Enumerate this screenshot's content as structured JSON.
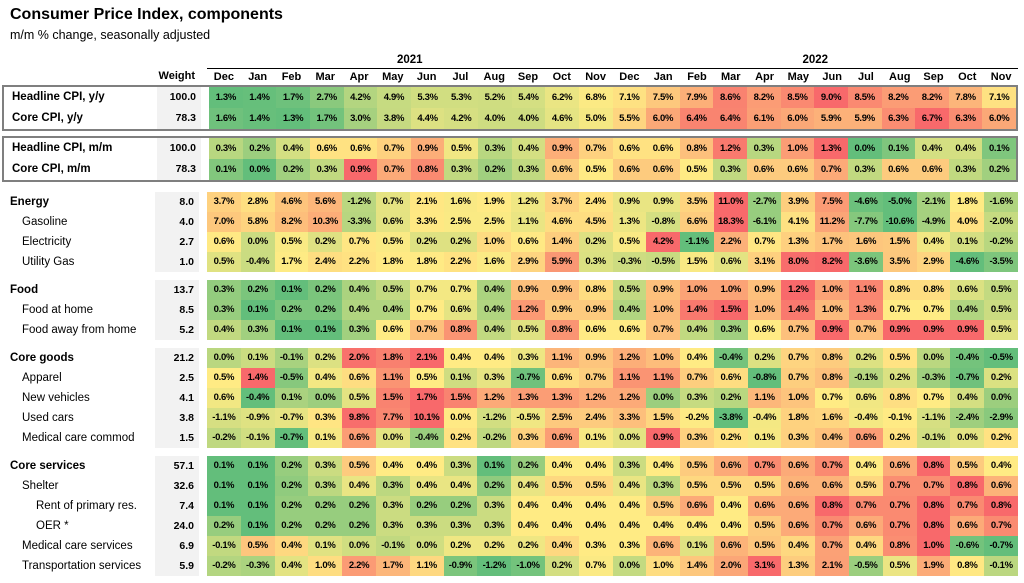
{
  "title": "Consumer Price Index, components",
  "subtitle": "m/m % change, seasonally adjusted",
  "header": {
    "weight_label": "Weight"
  },
  "chart_data": {
    "type": "heatmap",
    "title": "Consumer Price Index, components",
    "subtitle": "m/m % change, seasonally adjusted",
    "legend": "none",
    "color_scale": {
      "min_color": "#63BE7B",
      "mid_color": "#FFEB84",
      "max_color": "#F8696B",
      "midpoint": "per-row median",
      "scope": "per-row"
    },
    "box_border_color": "#7F7F7F",
    "weight_col_bg": "#F2F2F2",
    "year_groups": [
      {
        "label": "2021",
        "span": 12
      },
      {
        "label": "2022",
        "span": 12
      }
    ],
    "columns": [
      "Dec",
      "Jan",
      "Feb",
      "Mar",
      "Apr",
      "May",
      "Jun",
      "Jul",
      "Aug",
      "Sep",
      "Oct",
      "Nov",
      "Dec",
      "Jan",
      "Feb",
      "Mar",
      "Apr",
      "May",
      "Jun",
      "Jul",
      "Aug",
      "Sep",
      "Oct",
      "Nov"
    ],
    "groups": [
      {
        "name": "cpi-yoy",
        "boxed": true,
        "rows": [
          {
            "label": "Headline CPI, y/y",
            "weight": "100.0",
            "bold": true,
            "indent": 0,
            "values": [
              1.3,
              1.4,
              1.7,
              2.7,
              4.2,
              4.9,
              5.3,
              5.3,
              5.2,
              5.4,
              6.2,
              6.8,
              7.1,
              7.5,
              7.9,
              8.6,
              8.2,
              8.5,
              9.0,
              8.5,
              8.2,
              8.2,
              7.8,
              7.1
            ]
          },
          {
            "label": "Core CPI, y/y",
            "weight": "78.3",
            "bold": true,
            "indent": 0,
            "values": [
              1.6,
              1.4,
              1.3,
              1.7,
              3.0,
              3.8,
              4.4,
              4.2,
              4.0,
              4.0,
              4.6,
              5.0,
              5.5,
              6.0,
              6.4,
              6.4,
              6.1,
              6.0,
              5.9,
              5.9,
              6.3,
              6.7,
              6.3,
              6.0
            ]
          }
        ]
      },
      {
        "name": "cpi-mom",
        "boxed": true,
        "rows": [
          {
            "label": "Headline CPI, m/m",
            "weight": "100.0",
            "bold": true,
            "indent": 0,
            "values": [
              0.3,
              0.2,
              0.4,
              0.6,
              0.6,
              0.7,
              0.9,
              0.5,
              0.3,
              0.4,
              0.9,
              0.7,
              0.6,
              0.6,
              0.8,
              1.2,
              0.3,
              1.0,
              1.3,
              0.0,
              0.1,
              0.4,
              0.4,
              0.1
            ]
          },
          {
            "label": "Core CPI, m/m",
            "weight": "78.3",
            "bold": true,
            "indent": 0,
            "values": [
              0.1,
              0.0,
              0.2,
              0.3,
              0.9,
              0.7,
              0.8,
              0.3,
              0.2,
              0.3,
              0.6,
              0.5,
              0.6,
              0.6,
              0.5,
              0.3,
              0.6,
              0.6,
              0.7,
              0.3,
              0.6,
              0.6,
              0.3,
              0.2
            ]
          }
        ]
      },
      {
        "name": "energy",
        "boxed": false,
        "rows": [
          {
            "label": "Energy",
            "weight": "8.0",
            "bold": true,
            "indent": 0,
            "values": [
              3.7,
              2.8,
              4.6,
              5.6,
              -1.2,
              0.7,
              2.1,
              1.6,
              1.9,
              1.2,
              3.7,
              2.4,
              0.9,
              0.9,
              3.5,
              11.0,
              -2.7,
              3.9,
              7.5,
              -4.6,
              -5.0,
              -2.1,
              1.8,
              -1.6
            ]
          },
          {
            "label": "Gasoline",
            "weight": "4.0",
            "bold": false,
            "indent": 1,
            "values": [
              7.0,
              5.8,
              8.2,
              10.3,
              -3.3,
              0.6,
              3.3,
              2.5,
              2.5,
              1.1,
              4.6,
              4.5,
              1.3,
              -0.8,
              6.6,
              18.3,
              -6.1,
              4.1,
              11.2,
              -7.7,
              -10.6,
              -4.9,
              4.0,
              -2.0
            ]
          },
          {
            "label": "Electricity",
            "weight": "2.7",
            "bold": false,
            "indent": 1,
            "values": [
              0.6,
              0.0,
              0.5,
              0.2,
              0.7,
              0.5,
              0.2,
              0.2,
              1.0,
              0.6,
              1.4,
              0.2,
              0.5,
              4.2,
              -1.1,
              2.2,
              0.7,
              1.3,
              1.7,
              1.6,
              1.5,
              0.4,
              0.1,
              -0.2
            ]
          },
          {
            "label": "Utility Gas",
            "weight": "1.0",
            "bold": false,
            "indent": 1,
            "values": [
              0.5,
              -0.4,
              1.7,
              2.4,
              2.2,
              1.8,
              1.8,
              2.2,
              1.6,
              2.9,
              5.9,
              0.3,
              -0.3,
              -0.5,
              1.5,
              0.6,
              3.1,
              8.0,
              8.2,
              -3.6,
              3.5,
              2.9,
              -4.6,
              -3.5
            ]
          }
        ]
      },
      {
        "name": "food",
        "boxed": false,
        "rows": [
          {
            "label": "Food",
            "weight": "13.7",
            "bold": true,
            "indent": 0,
            "values": [
              0.3,
              0.2,
              0.1,
              0.2,
              0.4,
              0.5,
              0.7,
              0.7,
              0.4,
              0.9,
              0.9,
              0.8,
              0.5,
              0.9,
              1.0,
              1.0,
              0.9,
              1.2,
              1.0,
              1.1,
              0.8,
              0.8,
              0.6,
              0.5
            ]
          },
          {
            "label": "Food at home",
            "weight": "8.5",
            "bold": false,
            "indent": 1,
            "values": [
              0.3,
              0.1,
              0.2,
              0.2,
              0.4,
              0.4,
              0.7,
              0.6,
              0.4,
              1.2,
              0.9,
              0.9,
              0.4,
              1.0,
              1.4,
              1.5,
              1.0,
              1.4,
              1.0,
              1.3,
              0.7,
              0.7,
              0.4,
              0.5
            ]
          },
          {
            "label": "Food away from home",
            "weight": "5.2",
            "bold": false,
            "indent": 1,
            "values": [
              0.4,
              0.3,
              0.1,
              0.1,
              0.3,
              0.6,
              0.7,
              0.8,
              0.4,
              0.5,
              0.8,
              0.6,
              0.6,
              0.7,
              0.4,
              0.3,
              0.6,
              0.7,
              0.9,
              0.7,
              0.9,
              0.9,
              0.9,
              0.5
            ]
          }
        ]
      },
      {
        "name": "core-goods",
        "boxed": false,
        "rows": [
          {
            "label": "Core goods",
            "weight": "21.2",
            "bold": true,
            "indent": 0,
            "values": [
              0.0,
              0.1,
              -0.1,
              0.2,
              2.0,
              1.8,
              2.1,
              0.4,
              0.4,
              0.3,
              1.1,
              0.9,
              1.2,
              1.0,
              0.4,
              -0.4,
              0.2,
              0.7,
              0.8,
              0.2,
              0.5,
              0.0,
              -0.4,
              -0.5
            ]
          },
          {
            "label": "Apparel",
            "weight": "2.5",
            "bold": false,
            "indent": 1,
            "values": [
              0.5,
              1.4,
              -0.5,
              0.4,
              0.6,
              1.1,
              0.5,
              0.1,
              0.3,
              -0.7,
              0.6,
              0.7,
              1.1,
              1.1,
              0.7,
              0.6,
              -0.8,
              0.7,
              0.8,
              -0.1,
              0.2,
              -0.3,
              -0.7,
              0.2
            ]
          },
          {
            "label": "New vehicles",
            "weight": "4.1",
            "bold": false,
            "indent": 1,
            "values": [
              0.6,
              -0.4,
              0.1,
              0.0,
              0.5,
              1.5,
              1.7,
              1.5,
              1.2,
              1.3,
              1.3,
              1.2,
              1.2,
              0.0,
              0.3,
              0.2,
              1.1,
              1.0,
              0.7,
              0.6,
              0.8,
              0.7,
              0.4,
              0.0
            ]
          },
          {
            "label": "Used cars",
            "weight": "3.8",
            "bold": false,
            "indent": 1,
            "values": [
              -1.1,
              -0.9,
              -0.7,
              0.3,
              9.8,
              7.7,
              10.1,
              0.0,
              -1.2,
              -0.5,
              2.5,
              2.4,
              3.3,
              1.5,
              -0.2,
              -3.8,
              -0.4,
              1.8,
              1.6,
              -0.4,
              -0.1,
              -1.1,
              -2.4,
              -2.9
            ]
          },
          {
            "label": "Medical care commod",
            "weight": "1.5",
            "bold": false,
            "indent": 1,
            "values": [
              -0.2,
              -0.1,
              -0.7,
              0.1,
              0.6,
              0.0,
              -0.4,
              0.2,
              -0.2,
              0.3,
              0.6,
              0.1,
              0.0,
              0.9,
              0.3,
              0.2,
              0.1,
              0.3,
              0.4,
              0.6,
              0.2,
              -0.1,
              0.0,
              0.2
            ]
          }
        ]
      },
      {
        "name": "core-services",
        "boxed": false,
        "rows": [
          {
            "label": "Core services",
            "weight": "57.1",
            "bold": true,
            "indent": 0,
            "values": [
              0.1,
              0.1,
              0.2,
              0.3,
              0.5,
              0.4,
              0.4,
              0.3,
              0.1,
              0.2,
              0.4,
              0.4,
              0.3,
              0.4,
              0.5,
              0.6,
              0.7,
              0.6,
              0.7,
              0.4,
              0.6,
              0.8,
              0.5,
              0.4
            ]
          },
          {
            "label": "Shelter",
            "weight": "32.6",
            "bold": false,
            "indent": 1,
            "values": [
              0.1,
              0.1,
              0.2,
              0.3,
              0.4,
              0.3,
              0.4,
              0.4,
              0.2,
              0.4,
              0.5,
              0.5,
              0.4,
              0.3,
              0.5,
              0.5,
              0.5,
              0.6,
              0.6,
              0.5,
              0.7,
              0.7,
              0.8,
              0.6
            ]
          },
          {
            "label": "Rent of primary res.",
            "weight": "7.4",
            "bold": false,
            "indent": 2,
            "values": [
              0.1,
              0.1,
              0.2,
              0.2,
              0.2,
              0.3,
              0.2,
              0.2,
              0.3,
              0.4,
              0.4,
              0.4,
              0.4,
              0.5,
              0.6,
              0.4,
              0.6,
              0.6,
              0.8,
              0.7,
              0.7,
              0.8,
              0.7,
              0.8
            ]
          },
          {
            "label": "OER *",
            "weight": "24.0",
            "bold": false,
            "indent": 2,
            "values": [
              0.2,
              0.1,
              0.2,
              0.2,
              0.2,
              0.3,
              0.3,
              0.3,
              0.3,
              0.4,
              0.4,
              0.4,
              0.4,
              0.4,
              0.4,
              0.4,
              0.5,
              0.6,
              0.7,
              0.6,
              0.7,
              0.8,
              0.6,
              0.7
            ]
          },
          {
            "label": "Medical care services",
            "weight": "6.9",
            "bold": false,
            "indent": 1,
            "values": [
              -0.1,
              0.5,
              0.4,
              0.1,
              0.0,
              -0.1,
              0.0,
              0.2,
              0.2,
              0.2,
              0.4,
              0.3,
              0.3,
              0.6,
              0.1,
              0.6,
              0.5,
              0.4,
              0.7,
              0.4,
              0.8,
              1.0,
              -0.6,
              -0.7
            ]
          },
          {
            "label": "Transportation services",
            "weight": "5.9",
            "bold": false,
            "indent": 1,
            "values": [
              -0.2,
              -0.3,
              0.4,
              1.0,
              2.2,
              1.7,
              1.1,
              -0.9,
              -1.2,
              -1.0,
              0.2,
              0.7,
              0.0,
              1.0,
              1.4,
              2.0,
              3.1,
              1.3,
              2.1,
              -0.5,
              0.5,
              1.9,
              0.8,
              -0.1
            ]
          }
        ]
      }
    ]
  }
}
